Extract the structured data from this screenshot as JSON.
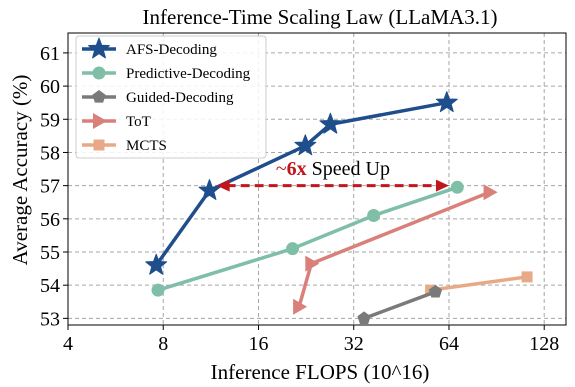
{
  "chart_data": {
    "type": "line",
    "title": "Inference-Time Scaling Law (LLaMA3.1)",
    "xlabel": "Inference FLOPS (10^16)",
    "ylabel": "Average Accuracy (%)",
    "x_scale": "log2",
    "xlim": [
      4,
      150
    ],
    "ylim": [
      52.8,
      61.6
    ],
    "xticks": [
      4,
      8,
      16,
      32,
      64,
      128
    ],
    "xtick_labels": [
      "4",
      "8",
      "16",
      "32",
      "64",
      "128"
    ],
    "yticks": [
      53,
      54,
      55,
      56,
      57,
      58,
      59,
      60,
      61
    ],
    "ytick_labels": [
      "53",
      "54",
      "55",
      "56",
      "57",
      "58",
      "59",
      "60",
      "61"
    ],
    "grid": true,
    "legend_position": "top-left",
    "series": [
      {
        "name": "AFS-Decoding",
        "color": "#1f4e8c",
        "marker": "star",
        "x": [
          7.6,
          11.2,
          22.5,
          27.0,
          63.0
        ],
        "y": [
          54.6,
          56.85,
          58.2,
          58.85,
          59.5
        ]
      },
      {
        "name": "Predictive-Decoding",
        "color": "#7fbfa8",
        "marker": "circle",
        "x": [
          7.7,
          20.5,
          37.0,
          68.0
        ],
        "y": [
          53.85,
          55.1,
          56.1,
          56.95
        ]
      },
      {
        "name": "Guided-Decoding",
        "color": "#7a7a7a",
        "marker": "pentagon",
        "x": [
          34.5,
          58.0
        ],
        "y": [
          53.0,
          53.8
        ]
      },
      {
        "name": "ToT",
        "color": "#d9807a",
        "marker": "triangle-right",
        "x": [
          21.5,
          23.5,
          86.0
        ],
        "y": [
          53.35,
          54.65,
          56.8
        ]
      },
      {
        "name": "MCTS",
        "color": "#e8aa86",
        "marker": "square",
        "x": [
          56.0,
          113.0
        ],
        "y": [
          53.85,
          54.25
        ]
      }
    ],
    "annotations": [
      {
        "type": "double-arrow",
        "color": "#c0161c",
        "x_from": 11.8,
        "x_to": 64.0,
        "y": 57.0
      },
      {
        "type": "text",
        "prefix": "~",
        "highlight": "6x",
        "suffix": " Speed Up",
        "x": 27.5,
        "y": 57.5,
        "color": "#c0161c"
      }
    ]
  }
}
